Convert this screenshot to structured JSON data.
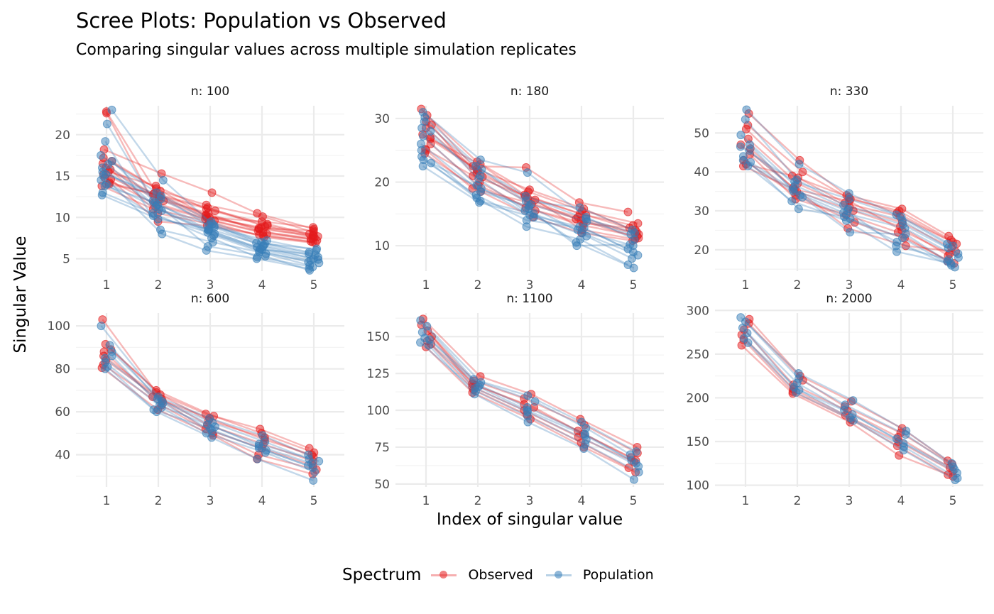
{
  "title": "Scree Plots: Population vs Observed",
  "subtitle": "Comparing singular values across multiple simulation replicates",
  "colors": {
    "Observed": "#E41A1C",
    "Population": "#377EB8",
    "grid": "#EBEBEB"
  },
  "legend": {
    "title": "Spectrum",
    "items": [
      {
        "label": "Observed",
        "series": "Observed"
      },
      {
        "label": "Population",
        "series": "Population"
      }
    ]
  },
  "chart_data": {
    "type": "line",
    "title": "Scree Plots: Population vs Observed",
    "subtitle": "Comparing singular values across multiple simulation replicates",
    "xlabel": "Index of singular value",
    "ylabel": "Singular Value",
    "x": [
      1,
      2,
      3,
      4,
      5
    ],
    "x_tick_labels": [
      "1",
      "2",
      "3",
      "4",
      "5"
    ],
    "legend_title": "Spectrum",
    "legend_position": "bottom",
    "grid": true,
    "facets": [
      {
        "strip": "n: 100",
        "ylim": [
          3.5,
          23.5
        ],
        "yticks": [
          5,
          10,
          15,
          20
        ],
        "series": [
          {
            "name": "Observed",
            "replicates": [
              [
                22.8,
                12.5,
                10.2,
                8.6,
                7.8
              ],
              [
                22.6,
                11.8,
                9.6,
                8.2,
                7.5
              ],
              [
                18.2,
                15.3,
                13.0,
                10.5,
                8.6
              ],
              [
                17.2,
                13.2,
                11.5,
                10.1,
                8.2
              ],
              [
                16.5,
                12.8,
                10.8,
                9.2,
                8.0
              ],
              [
                16.0,
                12.0,
                10.0,
                8.8,
                7.6
              ],
              [
                15.5,
                13.8,
                11.0,
                9.0,
                7.9
              ],
              [
                15.2,
                12.2,
                10.5,
                8.4,
                7.2
              ],
              [
                14.8,
                11.5,
                9.8,
                8.0,
                7.4
              ],
              [
                14.6,
                9.5,
                9.0,
                7.8,
                7.0
              ],
              [
                14.2,
                12.6,
                10.3,
                8.7,
                8.4
              ],
              [
                13.8,
                11.0,
                9.5,
                7.6,
                6.9
              ],
              [
                16.8,
                13.5,
                10.0,
                9.5,
                8.8
              ],
              [
                15.8,
                10.5,
                9.2,
                7.9,
                7.1
              ],
              [
                14.0,
                12.9,
                11.2,
                8.9,
                7.7
              ]
            ]
          },
          {
            "name": "Population",
            "replicates": [
              [
                23.0,
                14.5,
                9.0,
                6.8,
                5.5
              ],
              [
                21.3,
                12.0,
                8.5,
                6.2,
                4.8
              ],
              [
                19.2,
                8.5,
                7.0,
                5.8,
                4.5
              ],
              [
                17.5,
                13.0,
                9.5,
                7.0,
                5.8
              ],
              [
                16.8,
                11.5,
                8.8,
                6.5,
                5.0
              ],
              [
                16.0,
                10.8,
                8.0,
                6.0,
                4.6
              ],
              [
                15.5,
                12.2,
                9.2,
                6.6,
                5.2
              ],
              [
                15.0,
                8.0,
                6.0,
                5.0,
                3.8
              ],
              [
                14.5,
                11.0,
                7.8,
                5.6,
                4.2
              ],
              [
                14.0,
                10.2,
                8.2,
                6.1,
                5.6
              ],
              [
                13.8,
                11.8,
                6.5,
                5.3,
                3.6
              ],
              [
                13.0,
                10.5,
                7.5,
                5.2,
                4.0
              ],
              [
                12.7,
                9.8,
                8.6,
                6.9,
                6.2
              ],
              [
                15.2,
                12.6,
                9.0,
                7.2,
                6.0
              ],
              [
                16.4,
                11.3,
                8.4,
                6.4,
                4.9
              ]
            ]
          }
        ]
      },
      {
        "strip": "n: 180",
        "ylim": [
          6,
          32
        ],
        "yticks": [
          10,
          20,
          30
        ],
        "series": [
          {
            "name": "Observed",
            "replicates": [
              [
                31.5,
                22.5,
                22.3,
                16.8,
                15.3
              ],
              [
                30.5,
                23.2,
                18.5,
                15.5,
                13.5
              ],
              [
                29.5,
                21.5,
                17.8,
                14.8,
                12.5
              ],
              [
                28.5,
                20.8,
                16.5,
                14.0,
                11.8
              ],
              [
                27.0,
                22.0,
                18.8,
                15.8,
                12.2
              ],
              [
                26.0,
                19.5,
                15.5,
                13.2,
                11.5
              ],
              [
                25.2,
                21.0,
                17.2,
                12.5,
                11.0
              ],
              [
                24.5,
                18.5,
                14.5,
                12.0,
                10.8
              ],
              [
                26.8,
                22.8,
                18.0,
                15.0,
                13.2
              ],
              [
                29.0,
                20.0,
                16.0,
                13.5,
                12.8
              ],
              [
                27.5,
                21.8,
                17.5,
                14.2,
                11.2
              ],
              [
                25.0,
                19.0,
                16.8,
                14.5,
                12.0
              ]
            ]
          },
          {
            "name": "Population",
            "replicates": [
              [
                31.0,
                23.5,
                21.5,
                14.5,
                11.0
              ],
              [
                30.2,
                22.0,
                17.0,
                16.0,
                12.5
              ],
              [
                28.0,
                20.5,
                15.5,
                12.5,
                10.0
              ],
              [
                27.2,
                19.5,
                14.8,
                13.0,
                9.5
              ],
              [
                26.0,
                18.5,
                16.2,
                12.0,
                8.5
              ],
              [
                25.0,
                17.5,
                13.0,
                11.0,
                7.0
              ],
              [
                24.0,
                17.0,
                15.0,
                10.5,
                6.5
              ],
              [
                23.5,
                18.0,
                14.0,
                12.8,
                9.0
              ],
              [
                22.5,
                16.8,
                14.5,
                11.5,
                8.0
              ],
              [
                23.0,
                19.0,
                15.8,
                10.0,
                10.2
              ],
              [
                28.5,
                21.0,
                16.5,
                13.8,
                11.8
              ],
              [
                29.5,
                22.5,
                17.8,
                14.2,
                12.0
              ]
            ]
          }
        ]
      },
      {
        "strip": "n: 330",
        "ylim": [
          14.5,
          57
        ],
        "yticks": [
          20,
          30,
          40,
          50
        ],
        "series": [
          {
            "name": "Observed",
            "replicates": [
              [
                55.0,
                43.0,
                34.0,
                30.5,
                23.5
              ],
              [
                52.0,
                40.0,
                33.0,
                30.0,
                22.5
              ],
              [
                51.0,
                38.5,
                32.0,
                28.5,
                21.5
              ],
              [
                48.5,
                37.0,
                31.0,
                27.0,
                20.5
              ],
              [
                47.0,
                36.0,
                25.5,
                21.0,
                19.5
              ],
              [
                46.0,
                35.0,
                30.0,
                26.0,
                18.5
              ],
              [
                44.5,
                33.0,
                29.0,
                24.5,
                17.0
              ],
              [
                43.0,
                34.0,
                27.0,
                23.0,
                16.5
              ],
              [
                42.0,
                39.0,
                33.5,
                29.5,
                22.0
              ],
              [
                41.5,
                35.5,
                32.5,
                25.0,
                19.0
              ]
            ]
          },
          {
            "name": "Population",
            "replicates": [
              [
                56.0,
                42.0,
                34.5,
                29.0,
                21.5
              ],
              [
                53.5,
                38.0,
                31.5,
                27.5,
                20.5
              ],
              [
                49.5,
                36.5,
                30.5,
                26.5,
                19.0
              ],
              [
                47.0,
                35.0,
                29.5,
                25.5,
                18.0
              ],
              [
                45.5,
                34.0,
                24.5,
                24.0,
                17.0
              ],
              [
                44.0,
                30.5,
                28.5,
                23.0,
                16.0
              ],
              [
                43.0,
                33.5,
                28.0,
                22.0,
                15.5
              ],
              [
                41.5,
                32.5,
                27.5,
                19.5,
                16.5
              ],
              [
                46.5,
                37.5,
                33.0,
                28.5,
                21.0
              ],
              [
                42.5,
                35.5,
                30.0,
                21.0,
                17.5
              ]
            ]
          }
        ]
      },
      {
        "strip": "n: 600",
        "ylim": [
          25,
          106
        ],
        "yticks": [
          40,
          60,
          80,
          100
        ],
        "series": [
          {
            "name": "Observed",
            "replicates": [
              [
                103.0,
                69.0,
                59.0,
                52.0,
                43.0
              ],
              [
                91.5,
                70.0,
                58.0,
                50.0,
                41.0
              ],
              [
                89.0,
                68.0,
                56.0,
                48.0,
                39.0
              ],
              [
                86.0,
                66.0,
                54.0,
                45.0,
                37.0
              ],
              [
                84.0,
                65.0,
                52.0,
                43.0,
                35.0
              ],
              [
                82.0,
                63.0,
                50.0,
                40.0,
                33.0
              ],
              [
                80.5,
                61.0,
                49.0,
                38.0,
                31.0
              ],
              [
                88.0,
                67.0,
                57.0,
                47.0,
                40.0
              ]
            ]
          },
          {
            "name": "Population",
            "replicates": [
              [
                100.0,
                67.0,
                57.0,
                49.0,
                40.0
              ],
              [
                91.0,
                66.0,
                55.0,
                46.0,
                38.0
              ],
              [
                88.0,
                65.0,
                53.0,
                44.0,
                36.0
              ],
              [
                85.0,
                64.0,
                51.0,
                42.0,
                34.0
              ],
              [
                83.0,
                62.0,
                50.0,
                41.0,
                32.0
              ],
              [
                81.0,
                60.0,
                48.0,
                38.0,
                28.0
              ],
              [
                80.0,
                61.0,
                52.0,
                43.0,
                35.0
              ],
              [
                86.0,
                63.0,
                54.0,
                45.0,
                37.0
              ]
            ]
          }
        ]
      },
      {
        "strip": "n: 1100",
        "ylim": [
          48,
          166
        ],
        "yticks": [
          50,
          75,
          100,
          125,
          150
        ],
        "series": [
          {
            "name": "Observed",
            "replicates": [
              [
                162.0,
                123.0,
                111.0,
                94.0,
                75.0
              ],
              [
                158.0,
                120.0,
                108.0,
                90.0,
                71.0
              ],
              [
                154.0,
                118.0,
                104.0,
                86.0,
                68.0
              ],
              [
                150.0,
                116.0,
                100.0,
                82.0,
                65.0
              ],
              [
                147.0,
                114.0,
                97.0,
                78.0,
                61.0
              ],
              [
                143.0,
                112.0,
                94.0,
                75.0,
                58.0
              ],
              [
                145.0,
                117.0,
                102.0,
                84.0,
                66.0
              ]
            ]
          },
          {
            "name": "Population",
            "replicates": [
              [
                161.0,
                121.0,
                110.0,
                92.0,
                72.0
              ],
              [
                157.0,
                119.0,
                106.0,
                88.0,
                70.0
              ],
              [
                153.0,
                117.0,
                102.0,
                84.0,
                66.0
              ],
              [
                149.0,
                115.0,
                99.0,
                80.0,
                62.0
              ],
              [
                146.0,
                113.0,
                96.0,
                77.0,
                58.0
              ],
              [
                144.0,
                111.0,
                92.0,
                74.0,
                53.0
              ],
              [
                148.0,
                116.0,
                100.0,
                83.0,
                64.0
              ]
            ]
          }
        ]
      },
      {
        "strip": "n: 2000",
        "ylim": [
          98,
          297
        ],
        "yticks": [
          100,
          150,
          200,
          250,
          300
        ],
        "series": [
          {
            "name": "Observed",
            "replicates": [
              [
                290.0,
                225.0,
                196.0,
                165.0,
                128.0
              ],
              [
                285.0,
                220.0,
                190.0,
                160.0,
                124.0
              ],
              [
                278.0,
                215.0,
                185.0,
                155.0,
                120.0
              ],
              [
                272.0,
                210.0,
                180.0,
                150.0,
                116.0
              ],
              [
                266.0,
                207.0,
                175.0,
                145.0,
                112.0
              ],
              [
                260.0,
                205.0,
                172.0,
                134.0,
                110.0
              ]
            ]
          },
          {
            "name": "Population",
            "replicates": [
              [
                292.0,
                228.0,
                197.0,
                162.0,
                125.0
              ],
              [
                287.0,
                222.0,
                192.0,
                158.0,
                121.0
              ],
              [
                280.0,
                217.0,
                186.0,
                153.0,
                118.0
              ],
              [
                274.0,
                212.0,
                181.0,
                148.0,
                114.0
              ],
              [
                268.0,
                209.0,
                177.0,
                144.0,
                108.0
              ],
              [
                263.0,
                206.0,
                174.0,
                140.0,
                106.0
              ]
            ]
          }
        ]
      }
    ]
  }
}
